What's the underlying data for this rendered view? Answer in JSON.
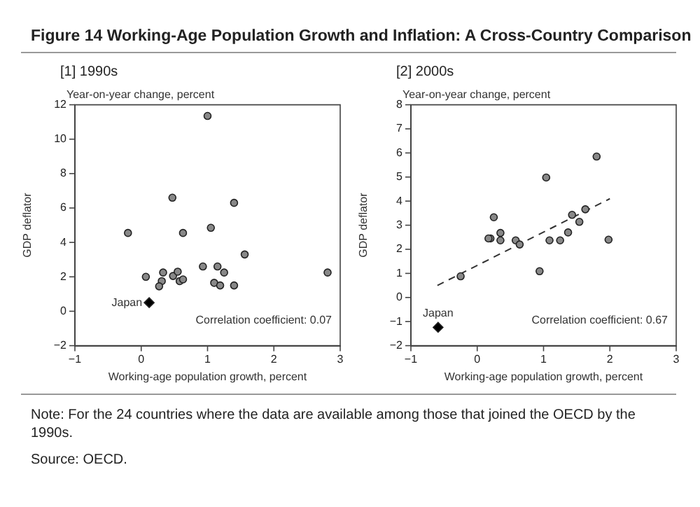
{
  "chart_data": [
    {
      "type": "scatter",
      "title": "Figure 14   Working-Age Population Growth and Inflation: A Cross-Country Comparison",
      "subtitle": "[1] 1990s",
      "xlabel": "Working-age population growth, percent",
      "ylabel": "GDP deflator",
      "annotations": [
        "Year-on-year change, percent",
        "Correlation coefficient: 0.07"
      ],
      "xlim": [
        -1,
        3
      ],
      "xticks": [
        -1,
        0,
        1,
        2,
        3
      ],
      "ylim": [
        -2,
        12
      ],
      "yticks": [
        -2,
        0,
        2,
        4,
        6,
        8,
        10,
        12
      ],
      "grid": false,
      "legend": false,
      "series": [
        {
          "color": "#888888",
          "marker": "circle",
          "x": [
            0.47,
            1.0,
            -0.2,
            0.63,
            1.05,
            1.4,
            0.07,
            0.33,
            0.31,
            0.27,
            0.48,
            0.55,
            0.58,
            0.63,
            1.1,
            1.19,
            1.25,
            1.4,
            2.81,
            1.56,
            1.15,
            0.93
          ],
          "values": [
            6.6,
            11.35,
            4.55,
            4.55,
            4.85,
            6.3,
            2.0,
            2.25,
            1.75,
            1.45,
            2.05,
            2.3,
            1.75,
            1.85,
            1.65,
            1.5,
            2.25,
            1.5,
            2.25,
            3.3,
            2.6,
            2.6
          ]
        },
        {
          "name": "Japan",
          "color": "#000000",
          "marker": "diamond",
          "x": [
            0.12
          ],
          "values": [
            0.5
          ]
        }
      ]
    },
    {
      "type": "scatter",
      "subtitle": "[2] 2000s",
      "xlabel": "Working-age population growth, percent",
      "ylabel": "GDP deflator",
      "annotations": [
        "Year-on-year change, percent",
        "Correlation coefficient: 0.67",
        "Note: For the 24 countries where the data are available among those that joined the OECD by the 1990s.",
        "Source: OECD."
      ],
      "xlim": [
        -1,
        3
      ],
      "xticks": [
        -1,
        0,
        1,
        2,
        3
      ],
      "ylim": [
        -2,
        8
      ],
      "yticks": [
        -2,
        -1,
        0,
        1,
        2,
        3,
        4,
        5,
        6,
        7,
        8
      ],
      "grid": false,
      "legend": false,
      "series": [
        {
          "color": "#888888",
          "marker": "circle",
          "x": [
            1.8,
            1.04,
            0.25,
            0.2,
            0.17,
            0.35,
            0.35,
            0.58,
            0.64,
            1.09,
            1.25,
            1.37,
            1.43,
            1.54,
            1.63,
            1.98,
            -0.25,
            0.94
          ],
          "values": [
            5.85,
            4.98,
            3.33,
            2.45,
            2.45,
            2.68,
            2.37,
            2.37,
            2.2,
            2.37,
            2.37,
            2.7,
            3.43,
            3.14,
            3.66,
            2.4,
            0.88,
            1.09
          ]
        },
        {
          "name": "Japan",
          "color": "#000000",
          "marker": "diamond",
          "x": [
            -0.59
          ],
          "values": [
            -1.24
          ]
        },
        {
          "type": "line",
          "color": "#333333",
          "line_style": "dashed",
          "marker": "none",
          "x": [
            -0.6,
            2.0
          ],
          "values": [
            0.5,
            4.1
          ]
        }
      ]
    }
  ]
}
